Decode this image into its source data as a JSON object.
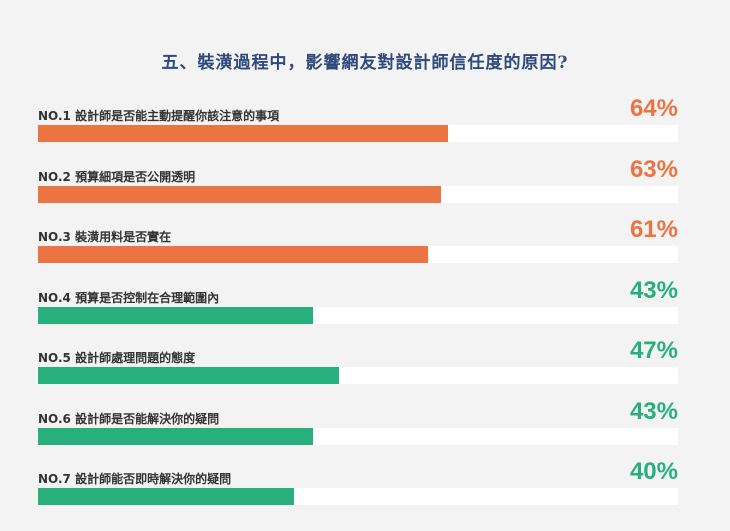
{
  "chart_data": {
    "type": "bar",
    "orientation": "horizontal",
    "title": "五、裝潢過程中，影響網友對設計師信任度的原因?",
    "xlim": [
      0,
      100
    ],
    "grid": false,
    "categories": [
      "NO.1 設計師是否能主動提醒你該注意的事項",
      "NO.2 預算細項是否公開透明",
      "NO.3 裝潢用料是否實在",
      "NO.4 預算是否控制在合理範圍內",
      "NO.5 設計師處理問題的態度",
      "NO.6 設計師是否能解決你的疑問",
      "NO.7 設計師能否即時解決你的疑問"
    ],
    "values": [
      64,
      63,
      61,
      43,
      47,
      43,
      40
    ],
    "value_labels": [
      "64%",
      "63%",
      "61%",
      "43%",
      "47%",
      "43%",
      "40%"
    ],
    "bar_colors": [
      "#ec7442",
      "#ec7442",
      "#ec7442",
      "#27b07e",
      "#27b07e",
      "#27b07e",
      "#27b07e"
    ]
  },
  "colors": {
    "title": "#2e4a7d",
    "orange": "#ec7442",
    "green": "#27b07e",
    "track": "#ffffff",
    "background": "#f3f3f3"
  }
}
